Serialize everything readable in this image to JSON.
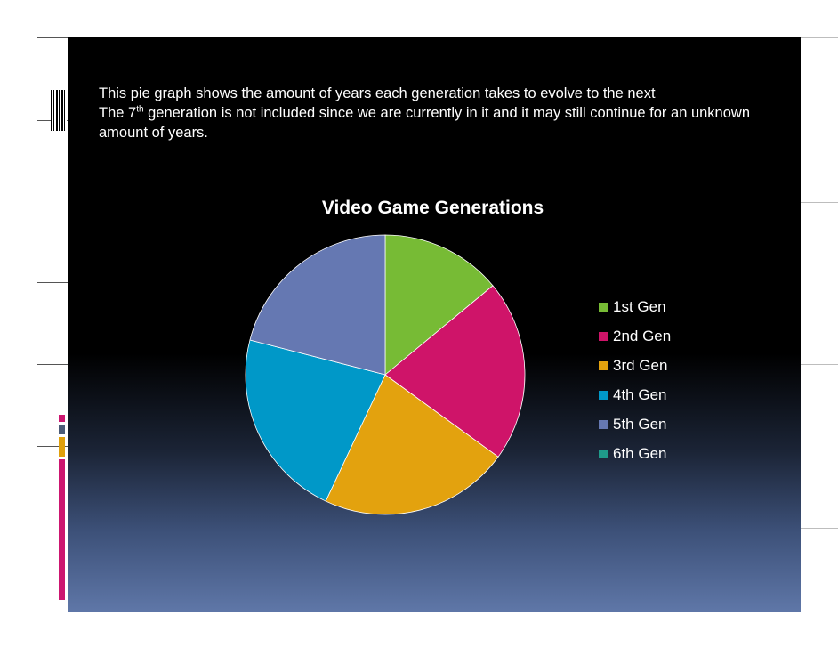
{
  "slide": {
    "intro_line1": "This pie graph shows the amount of years each generation takes to evolve to the next",
    "intro_line2_pre": "The 7",
    "intro_line2_sup": "th",
    "intro_line2_post": " generation is not included since we are currently in it and it may still continue for an unknown amount of years."
  },
  "colors": {
    "background": "#000000",
    "gradient_bottom": "#5f77a8",
    "accent_pink": "#cc1670",
    "accent_orange": "#e0a00c",
    "accent_slate": "#4b5b77"
  },
  "chart_data": {
    "type": "pie",
    "title": "Video Game Generations",
    "categories": [
      "1st Gen",
      "2nd Gen",
      "3rd Gen",
      "4th Gen",
      "5th Gen",
      "6th Gen"
    ],
    "values": [
      14,
      21,
      22,
      22,
      21,
      0
    ],
    "colors": [
      "#77bb35",
      "#cf1469",
      "#e3a20e",
      "#0098c8",
      "#6578b2",
      "#1f9a8a"
    ],
    "legend_position": "right"
  }
}
